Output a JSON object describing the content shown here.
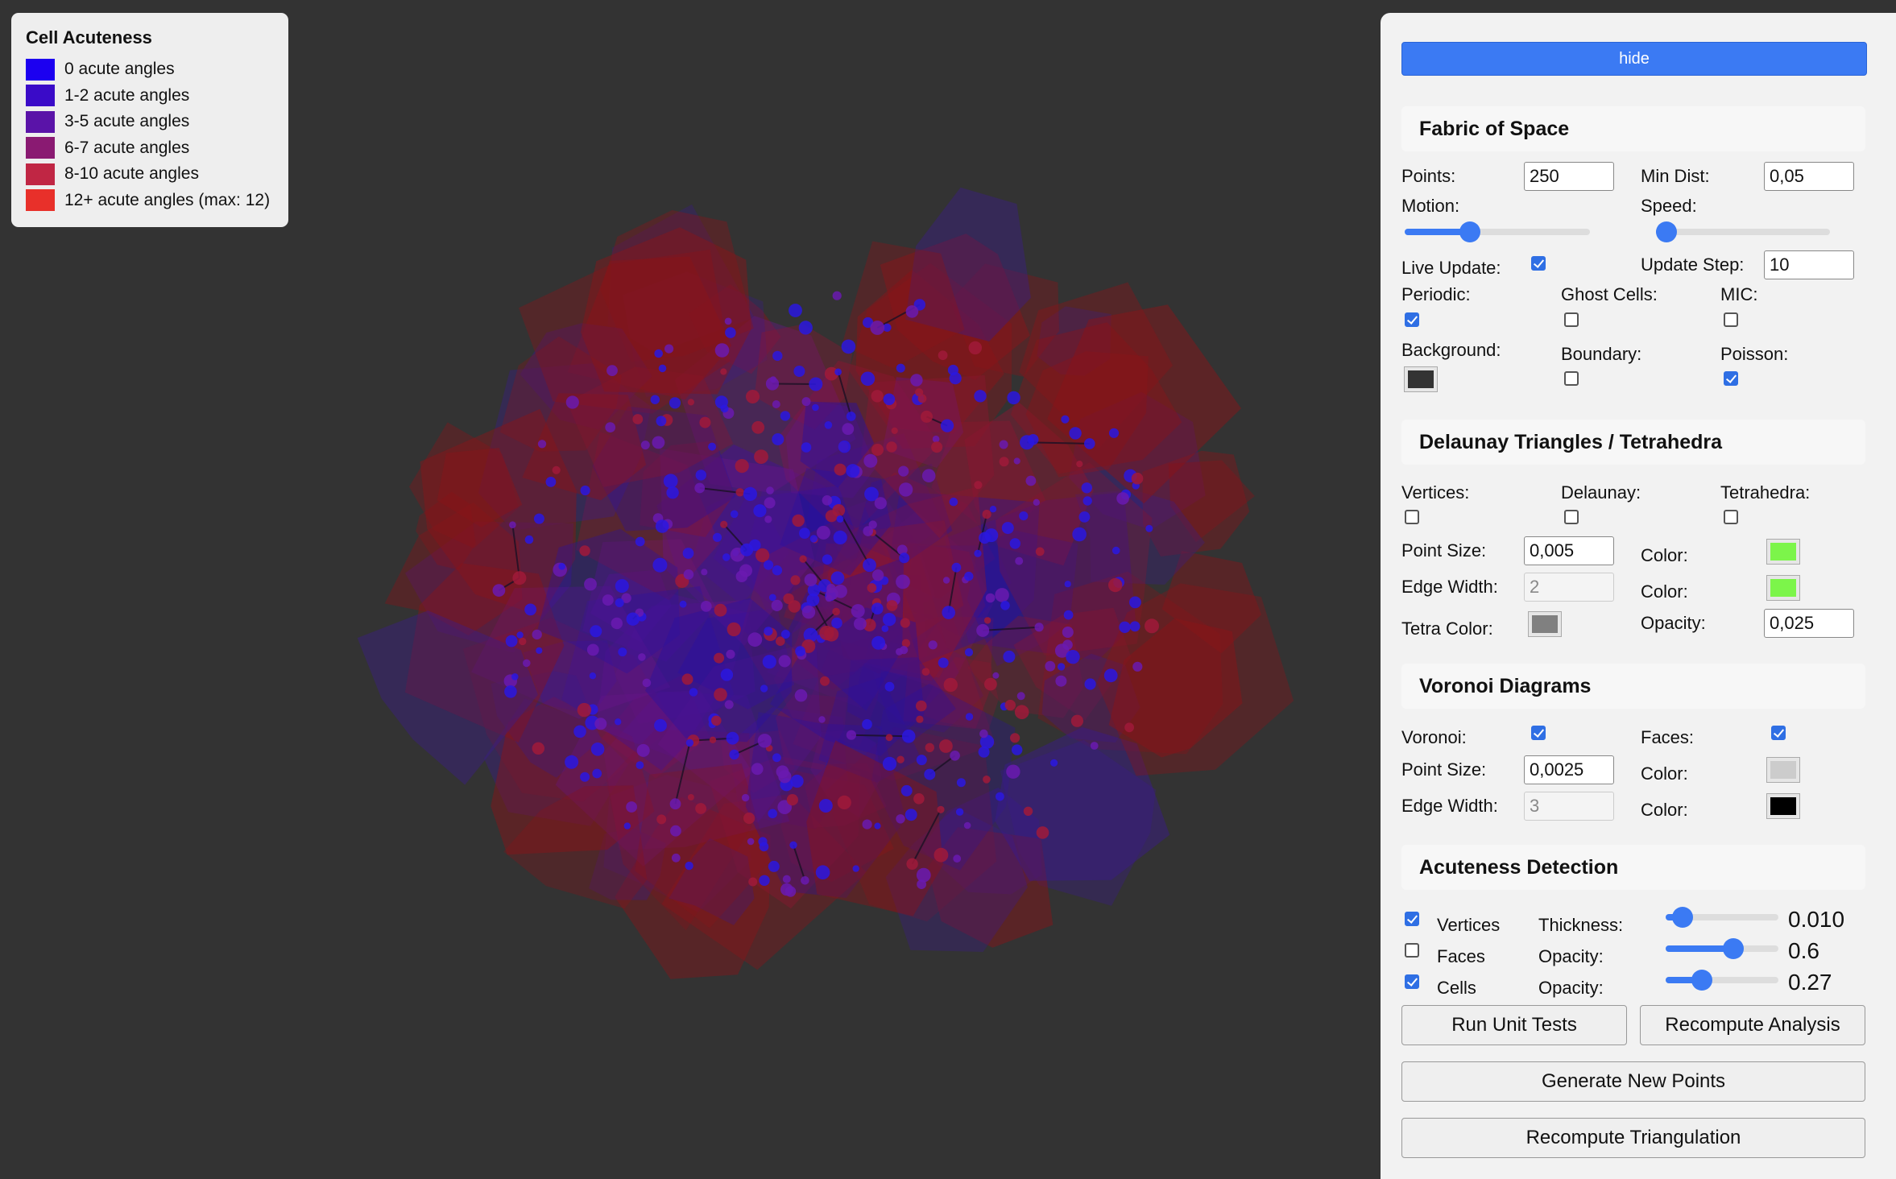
{
  "legend": {
    "title": "Cell Acuteness",
    "items": [
      {
        "label": "0 acute angles",
        "color": "#1c00f0"
      },
      {
        "label": "1-2 acute angles",
        "color": "#3a0bc8"
      },
      {
        "label": "3-5 acute angles",
        "color": "#5a13a8"
      },
      {
        "label": "6-7 acute angles",
        "color": "#8a1a72"
      },
      {
        "label": "8-10 acute angles",
        "color": "#c02644"
      },
      {
        "label": "12+ acute angles (max: 12)",
        "color": "#e8302a"
      }
    ]
  },
  "panel": {
    "hide_label": "hide",
    "fabric": {
      "title": "Fabric of Space",
      "points_label": "Points:",
      "points_value": "250",
      "mindist_label": "Min Dist:",
      "mindist_value": "0,05",
      "motion_label": "Motion:",
      "motion_level": 0.35,
      "speed_label": "Speed:",
      "speed_level": 0.0,
      "live_update_label": "Live Update:",
      "live_update": true,
      "update_step_label": "Update Step:",
      "update_step_value": "10",
      "periodic_label": "Periodic:",
      "periodic": true,
      "ghost_label": "Ghost Cells:",
      "ghost": false,
      "mic_label": "MIC:",
      "mic": false,
      "background_label": "Background:",
      "background_color": "#333333",
      "boundary_label": "Boundary:",
      "boundary": false,
      "poisson_label": "Poisson:",
      "poisson": true
    },
    "delaunay": {
      "title": "Delaunay Triangles / Tetrahedra",
      "vertices_label": "Vertices:",
      "vertices": false,
      "delaunay_label": "Delaunay:",
      "delaunay": false,
      "tetra_label": "Tetrahedra:",
      "tetra": false,
      "point_size_label": "Point Size:",
      "point_size_value": "0,005",
      "color1_label": "Color:",
      "color1": "#7cf54a",
      "edge_width_label": "Edge Width:",
      "edge_width_value": "2",
      "color2_label": "Color:",
      "color2": "#7cf54a",
      "tetra_color_label": "Tetra Color:",
      "tetra_color": "#808080",
      "opacity_label": "Opacity:",
      "opacity_value": "0,025"
    },
    "voronoi": {
      "title": "Voronoi Diagrams",
      "voronoi_label": "Voronoi:",
      "voronoi": true,
      "faces_label": "Faces:",
      "faces": true,
      "point_size_label": "Point Size:",
      "point_size_value": "0,0025",
      "color1_label": "Color:",
      "color1": "#cccccc",
      "edge_width_label": "Edge Width:",
      "edge_width_value": "3",
      "color2_label": "Color:",
      "color2": "#000000"
    },
    "acuteness": {
      "title": "Acuteness Detection",
      "vertices_label": "Vertices",
      "vertices": true,
      "faces_label": "Faces",
      "faces": false,
      "cells_label": "Cells",
      "cells": true,
      "thickness_label": "Thickness:",
      "thickness_value": "0.010",
      "thickness_level": 0.15,
      "opacity1_label": "Opacity:",
      "opacity1_value": "0.6",
      "opacity1_level": 0.6,
      "opacity2_label": "Opacity:",
      "opacity2_value": "0.27",
      "opacity2_level": 0.32
    },
    "buttons": {
      "run_tests": "Run Unit Tests",
      "recompute_analysis": "Recompute Analysis",
      "generate_points": "Generate New Points",
      "recompute_triangulation": "Recompute Triangulation"
    }
  }
}
